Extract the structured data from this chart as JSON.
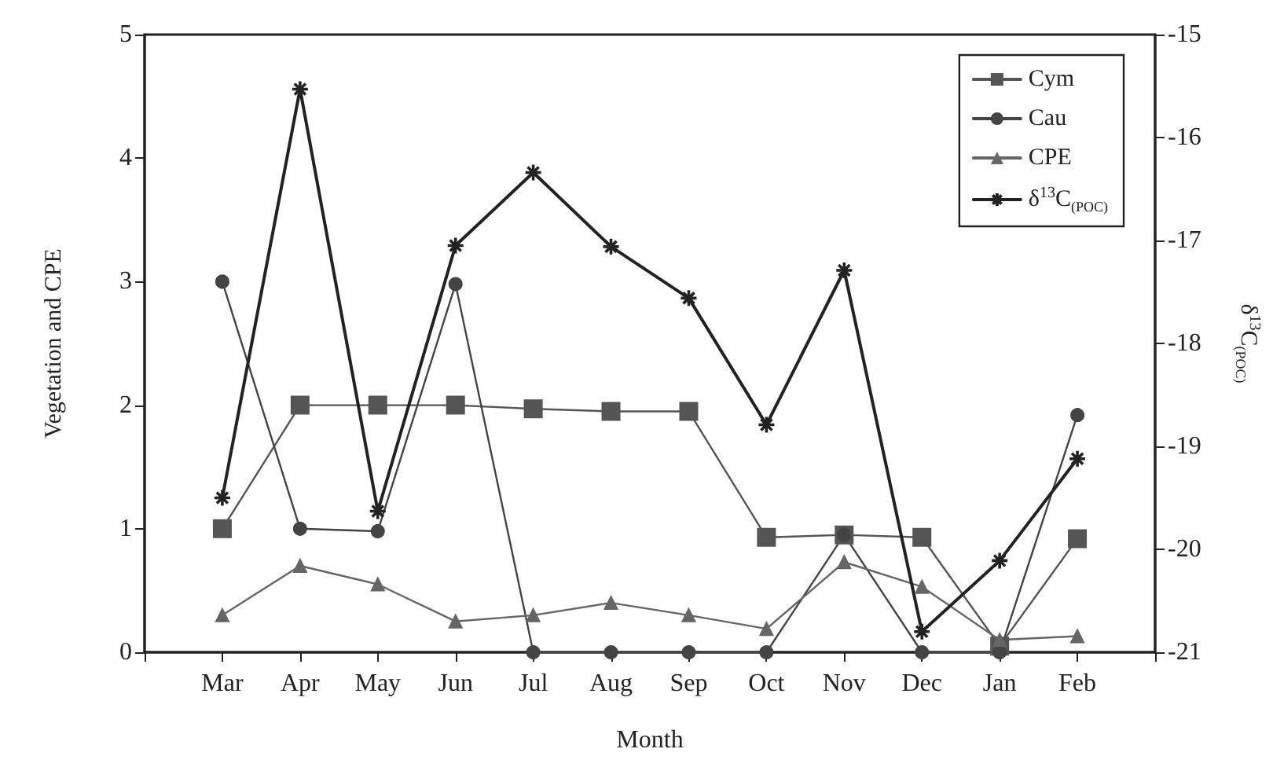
{
  "chart_data": {
    "type": "line",
    "xlabel": "Month",
    "ylabel": "Vegetation and CPE",
    "y2label": "δ$^{13}$C$_{(POC)}$",
    "categories": [
      "Mar",
      "Apr",
      "May",
      "Jun",
      "Jul",
      "Aug",
      "Sep",
      "Oct",
      "Nov",
      "Dec",
      "Jan",
      "Feb"
    ],
    "series": [
      {
        "name": "Cym",
        "color": "#555555",
        "marker": "square",
        "values": [
          1.0,
          2.0,
          2.0,
          2.0,
          1.97,
          1.95,
          1.95,
          0.93,
          0.95,
          0.93,
          0.05,
          0.92
        ]
      },
      {
        "name": "Cau",
        "color": "#444444",
        "marker": "circle",
        "values": [
          3.0,
          1.0,
          0.98,
          2.98,
          0,
          0,
          0,
          0,
          0.95,
          0,
          0,
          1.92
        ]
      },
      {
        "name": "CPE",
        "color": "#666666",
        "marker": "triangle",
        "values": [
          0.3,
          0.7,
          0.55,
          0.25,
          0.3,
          0.4,
          0.3,
          0.19,
          0.73,
          0.53,
          0.1,
          0.13
        ]
      },
      {
        "name": "δ$^{13}$C$_{(POC)}$",
        "color": "#222222",
        "marker": "cross",
        "axis": "y2",
        "values": [
          -19.5,
          -15.53,
          -19.63,
          -17.05,
          -16.34,
          -17.06,
          -17.56,
          -18.79,
          -17.29,
          -20.8,
          -20.11,
          -19.12
        ]
      }
    ],
    "ylim": [
      0,
      5
    ],
    "yticks": [
      0,
      1,
      2,
      3,
      4,
      5
    ],
    "y2lim": [
      -21,
      -15
    ],
    "y2ticks": [
      -21,
      -20,
      -19,
      -18,
      -17,
      -16,
      -15
    ],
    "legend": "top right"
  }
}
